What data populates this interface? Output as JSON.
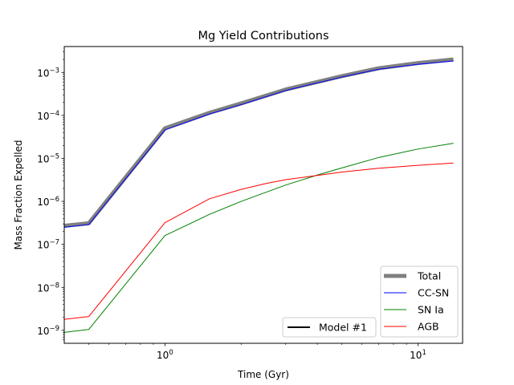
{
  "chart_data": {
    "type": "line",
    "title": "Mg Yield Contributions",
    "xlabel": "Time (Gyr)",
    "ylabel": "Mass Fraction Expelled",
    "xscale": "log",
    "yscale": "log",
    "xlim": [
      0.4,
      15
    ],
    "ylim": [
      5e-10,
      0.004
    ],
    "grid": false,
    "x_ticks": [
      {
        "value": 1,
        "base": "10",
        "exp": "0"
      },
      {
        "value": 10,
        "base": "10",
        "exp": "1"
      }
    ],
    "y_ticks": [
      {
        "value": 1e-09,
        "base": "10",
        "exp": "−9"
      },
      {
        "value": 1e-08,
        "base": "10",
        "exp": "−8"
      },
      {
        "value": 1e-07,
        "base": "10",
        "exp": "−7"
      },
      {
        "value": 1e-06,
        "base": "10",
        "exp": "−6"
      },
      {
        "value": 1e-05,
        "base": "10",
        "exp": "−5"
      },
      {
        "value": 0.0001,
        "base": "10",
        "exp": "−4"
      },
      {
        "value": 0.001,
        "base": "10",
        "exp": "−3"
      }
    ],
    "series": [
      {
        "name": "Total",
        "color": "#808080",
        "width": 5,
        "x": [
          0.4,
          0.5,
          1.0,
          1.5,
          2.0,
          3.0,
          5.0,
          7.0,
          10.0,
          13.8
        ],
        "y": [
          2.7e-07,
          3.1e-07,
          5e-05,
          0.000115,
          0.00019,
          0.0004,
          0.00082,
          0.00125,
          0.00165,
          0.002
        ]
      },
      {
        "name": "CC-SN",
        "color": "#0000ff",
        "width": 1,
        "x": [
          0.4,
          0.5,
          1.0,
          1.5,
          2.0,
          3.0,
          5.0,
          7.0,
          10.0,
          13.8
        ],
        "y": [
          2.5e-07,
          2.9e-07,
          4.6e-05,
          0.000108,
          0.000178,
          0.00038,
          0.00078,
          0.00118,
          0.00155,
          0.00185
        ]
      },
      {
        "name": "SN Ia",
        "color": "#008000",
        "width": 1,
        "x": [
          0.4,
          0.5,
          1.0,
          1.5,
          2.0,
          3.0,
          4.0,
          5.0,
          7.0,
          10.0,
          13.8
        ],
        "y": [
          9e-10,
          1.05e-09,
          1.6e-07,
          5e-07,
          1e-06,
          2.4e-06,
          4.1e-06,
          6e-06,
          1.05e-05,
          1.65e-05,
          2.25e-05
        ]
      },
      {
        "name": "AGB",
        "color": "#ff0000",
        "width": 1,
        "x": [
          0.4,
          0.5,
          1.0,
          1.5,
          2.0,
          2.5,
          3.0,
          4.0,
          5.0,
          7.0,
          10.0,
          13.8
        ],
        "y": [
          1.8e-09,
          2.1e-09,
          3.2e-07,
          1.15e-06,
          1.9e-06,
          2.6e-06,
          3.2e-06,
          4e-06,
          4.8e-06,
          5.9e-06,
          6.9e-06,
          7.8e-06
        ]
      }
    ],
    "legend": {
      "placement": "lower right",
      "entries": [
        "Total",
        "CC-SN",
        "SN Ia",
        "AGB"
      ]
    },
    "legend2": {
      "placement": "lower center",
      "entries": [
        {
          "name": "Model #1",
          "color": "#000000"
        }
      ]
    }
  }
}
